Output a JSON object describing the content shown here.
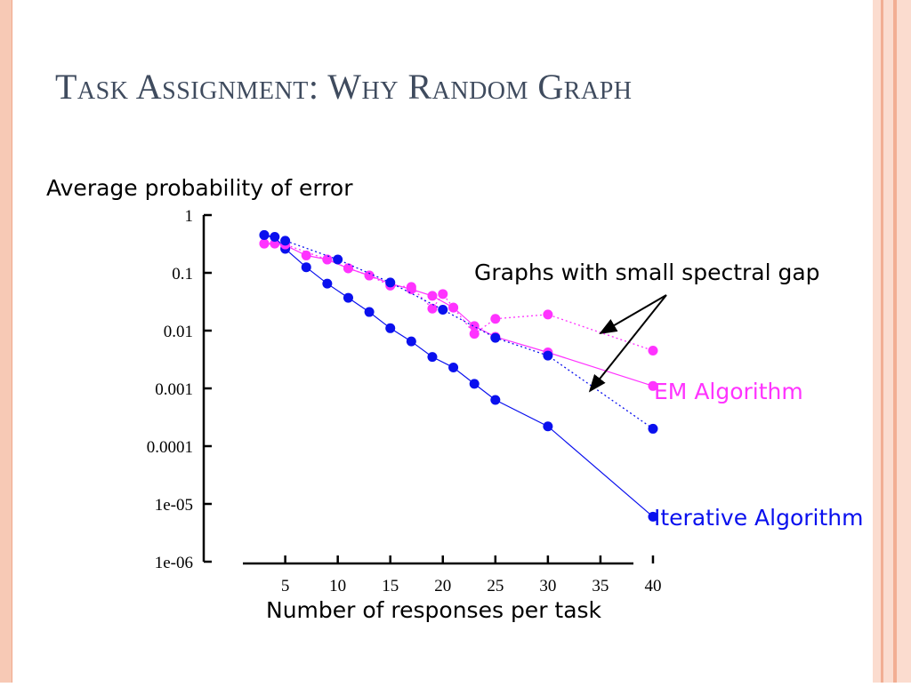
{
  "slide": {
    "title": "Task Assignment: Why Random Graph"
  },
  "colors": {
    "frame": "#f7c9b5",
    "frame_line": "#f2ae93",
    "title": "#3f4b5e",
    "em": "#ff33ff",
    "iterative": "#0a10ee"
  },
  "chart_data": {
    "type": "line",
    "ylabel": "Average probability of error",
    "xlabel": "Number of responses per task",
    "yscale": "log",
    "ylim": [
      1e-06,
      1
    ],
    "xlim": [
      1,
      40
    ],
    "x_ticks": [
      5,
      10,
      15,
      20,
      25,
      30,
      35,
      40
    ],
    "y_ticks": [
      {
        "value": 1,
        "label": "1"
      },
      {
        "value": 0.1,
        "label": "0.1"
      },
      {
        "value": 0.01,
        "label": "0.01"
      },
      {
        "value": 0.001,
        "label": "0.001"
      },
      {
        "value": 0.0001,
        "label": "0.0001"
      },
      {
        "value": 1e-05,
        "label": "1e-05"
      },
      {
        "value": 1e-06,
        "label": "1e-06"
      }
    ],
    "grid": false,
    "series": [
      {
        "name": "EM Algorithm",
        "color": "#ff33ff",
        "line_style": "solid",
        "x": [
          3,
          4,
          5,
          7,
          9,
          11,
          13,
          15,
          17,
          19,
          21,
          23,
          25,
          30,
          40
        ],
        "y": [
          0.32,
          0.32,
          0.3,
          0.2,
          0.17,
          0.12,
          0.09,
          0.065,
          0.052,
          0.04,
          0.025,
          0.012,
          0.0078,
          0.0042,
          0.0011
        ]
      },
      {
        "name": "Iterative Algorithm",
        "color": "#0a10ee",
        "line_style": "solid",
        "x": [
          3,
          4,
          5,
          7,
          9,
          11,
          13,
          15,
          17,
          19,
          21,
          23,
          25,
          30,
          40
        ],
        "y": [
          0.45,
          0.42,
          0.26,
          0.125,
          0.065,
          0.037,
          0.021,
          0.011,
          0.0065,
          0.0035,
          0.0023,
          0.0012,
          0.00063,
          0.00022,
          6e-06
        ]
      },
      {
        "name": "",
        "color": "#ff33ff",
        "line_style": "dotted",
        "x": [
          3,
          5,
          9,
          11,
          13,
          15,
          17,
          19,
          20,
          21,
          23,
          25,
          30,
          40
        ],
        "y": [
          0.32,
          0.31,
          0.17,
          0.12,
          0.09,
          0.06,
          0.057,
          0.024,
          0.043,
          0.025,
          0.0088,
          0.016,
          0.019,
          0.0045
        ]
      },
      {
        "name": "",
        "color": "#0a10ee",
        "line_style": "dotted",
        "x": [
          3,
          5,
          10,
          15,
          20,
          25,
          30,
          40
        ],
        "y": [
          0.45,
          0.36,
          0.17,
          0.068,
          0.023,
          0.0075,
          0.0037,
          0.0002
        ]
      }
    ],
    "annotations": [
      {
        "text": "Graphs with small spectral gap",
        "arrow_targets": [
          [
            35,
            0.009
          ],
          [
            34,
            0.0009
          ]
        ]
      },
      {
        "text": "EM Algorithm",
        "color": "#ff33ff"
      },
      {
        "text": "Iterative Algorithm",
        "color": "#0a10ee"
      }
    ]
  }
}
